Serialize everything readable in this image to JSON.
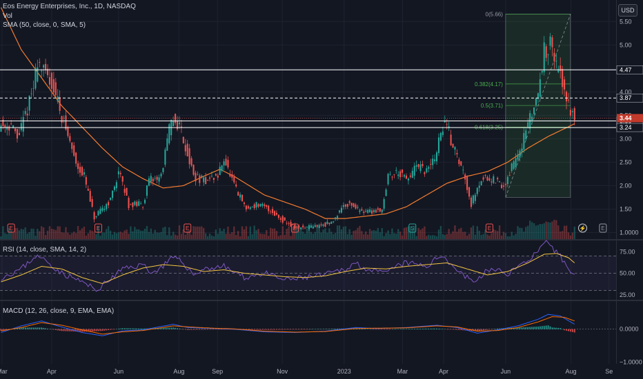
{
  "header": {
    "title": "Eos Energy Enterprises, Inc., 1D, NASDAQ",
    "vol": "Vol",
    "sma": "SMA (50, close, 0, SMA, 5)",
    "currency": "USD"
  },
  "colors": {
    "bg": "#131722",
    "grid": "#1f2330",
    "text": "#b2b5be",
    "up": "#26a69a",
    "down": "#ef5350",
    "sma": "#f57c2f",
    "rsi": "#7e57c2",
    "rsi_ma": "#f4c542",
    "macd": "#2962ff",
    "signal": "#ff6d00",
    "fib": "#4caf50",
    "level": "#ffffff",
    "price_badge": "#c23a2b"
  },
  "chart_data": [
    {
      "type": "candlestick",
      "title": "Eos Energy Enterprises, Inc., 1D, NASDAQ",
      "y_ticks": [
        1.0,
        1.5,
        2.0,
        2.5,
        3.0,
        3.5,
        4.0,
        4.5,
        5.0,
        5.5
      ],
      "y_tick_labels": [
        "1.0000",
        "1.50",
        "2.00",
        "2.50",
        "3.00",
        "3.50",
        "4.00",
        "4.50",
        "5.00",
        "5.50"
      ],
      "ylim": [
        0.86,
        5.96
      ],
      "x_ticks": [
        "Mar",
        "Apr",
        "Jun",
        "Aug",
        "Sep",
        "Nov",
        "2023",
        "Mar",
        "Apr",
        "Jun",
        "Aug",
        "Se"
      ],
      "x_tick_pos": [
        0.5,
        25.0,
        58.0,
        87.8,
        106.8,
        138.8,
        169.3,
        198.1,
        218.4,
        249.0,
        281.2,
        300.0
      ],
      "bars_total": 304,
      "price_path": [
        [
          0,
          3.3
        ],
        [
          6,
          3.3
        ],
        [
          9,
          3.0
        ],
        [
          13,
          3.5
        ],
        [
          17,
          4.1
        ],
        [
          19,
          4.7
        ],
        [
          22,
          4.4
        ],
        [
          26,
          4.2
        ],
        [
          29,
          3.8
        ],
        [
          33,
          3.2
        ],
        [
          38,
          2.5
        ],
        [
          42,
          2.2
        ],
        [
          47,
          1.3
        ],
        [
          49,
          1.4
        ],
        [
          55,
          1.7
        ],
        [
          59,
          2.3
        ],
        [
          64,
          1.6
        ],
        [
          71,
          1.6
        ],
        [
          74,
          2.1
        ],
        [
          80,
          2.2
        ],
        [
          84,
          3.2
        ],
        [
          86,
          3.4
        ],
        [
          89,
          3.3
        ],
        [
          91,
          3.0
        ],
        [
          96,
          2.2
        ],
        [
          101,
          2.1
        ],
        [
          108,
          2.2
        ],
        [
          111,
          2.6
        ],
        [
          114,
          2.2
        ],
        [
          117,
          1.9
        ],
        [
          122,
          1.5
        ],
        [
          127,
          1.6
        ],
        [
          133,
          1.5
        ],
        [
          139,
          1.3
        ],
        [
          146,
          1.1
        ],
        [
          152,
          1.1
        ],
        [
          158,
          1.15
        ],
        [
          164,
          1.2
        ],
        [
          170,
          1.6
        ],
        [
          174,
          1.6
        ],
        [
          177,
          1.5
        ],
        [
          183,
          1.45
        ],
        [
          189,
          1.5
        ],
        [
          192,
          2.2
        ],
        [
          197,
          2.3
        ],
        [
          201,
          2.1
        ],
        [
          206,
          2.4
        ],
        [
          211,
          2.3
        ],
        [
          215,
          2.6
        ],
        [
          218,
          3.1
        ],
        [
          220,
          3.4
        ],
        [
          223,
          3.0
        ],
        [
          227,
          2.5
        ],
        [
          230,
          2.2
        ],
        [
          233,
          1.6
        ],
        [
          236,
          2.0
        ],
        [
          240,
          2.2
        ],
        [
          245,
          2.1
        ],
        [
          249,
          1.95
        ],
        [
          253,
          2.4
        ],
        [
          258,
          2.9
        ],
        [
          262,
          3.4
        ],
        [
          266,
          4.0
        ],
        [
          268,
          4.5
        ],
        [
          269,
          5.2
        ],
        [
          270,
          4.9
        ],
        [
          272,
          5.0
        ],
        [
          274,
          4.7
        ],
        [
          276,
          4.4
        ],
        [
          278,
          4.2
        ],
        [
          280,
          3.9
        ],
        [
          282,
          3.6
        ],
        [
          283,
          3.5
        ]
      ],
      "volume_note": "daily volume bars",
      "sma_path": [
        [
          0,
          5.8
        ],
        [
          10,
          4.9
        ],
        [
          20,
          4.3
        ],
        [
          30,
          3.7
        ],
        [
          40,
          3.25
        ],
        [
          50,
          2.8
        ],
        [
          60,
          2.4
        ],
        [
          70,
          2.15
        ],
        [
          80,
          1.95
        ],
        [
          90,
          2.0
        ],
        [
          100,
          2.2
        ],
        [
          108,
          2.35
        ],
        [
          115,
          2.2
        ],
        [
          130,
          1.8
        ],
        [
          150,
          1.5
        ],
        [
          160,
          1.3
        ],
        [
          170,
          1.3
        ],
        [
          180,
          1.35
        ],
        [
          190,
          1.4
        ],
        [
          200,
          1.55
        ],
        [
          210,
          1.8
        ],
        [
          220,
          2.05
        ],
        [
          230,
          2.2
        ],
        [
          240,
          2.3
        ],
        [
          250,
          2.5
        ],
        [
          260,
          2.8
        ],
        [
          270,
          3.05
        ],
        [
          283,
          3.32
        ]
      ],
      "levels": [
        {
          "price": 4.47,
          "label": "4.47",
          "style": "solid"
        },
        {
          "price": 3.87,
          "label": "3.87",
          "style": "dashed"
        },
        {
          "price": 3.38,
          "label": "3.38",
          "style": "solid"
        },
        {
          "price": 3.24,
          "label": "3.24",
          "style": "solid"
        }
      ],
      "last_price": {
        "value": 3.44,
        "label": "3.44"
      },
      "fib": {
        "x0": 249,
        "x1": 281,
        "low": 1.75,
        "high": 5.66,
        "labels": [
          {
            "text": "0(5.66)",
            "price": 5.66
          },
          {
            "text": "0.382(4.17)",
            "price": 4.17
          },
          {
            "text": "0.5(3.71)",
            "price": 3.71
          },
          {
            "text": "0.618(3.25)",
            "price": 3.25
          }
        ]
      },
      "event_markers": [
        {
          "x": 5,
          "label": "E",
          "kind": "earnings"
        },
        {
          "x": 48,
          "label": "E",
          "kind": "earnings"
        },
        {
          "x": 92,
          "label": "E",
          "kind": "earnings"
        },
        {
          "x": 145,
          "label": "E",
          "kind": "earnings"
        },
        {
          "x": 203,
          "label": "S",
          "kind": "split"
        },
        {
          "x": 241,
          "label": "E",
          "kind": "earnings"
        },
        {
          "x": 287,
          "label": "⚡",
          "kind": "news"
        },
        {
          "x": 297,
          "label": "E",
          "kind": "earnings"
        }
      ]
    },
    {
      "type": "line",
      "title": "RSI (14, close, SMA, 14, 2)",
      "y_ticks": [
        25.0,
        50.0,
        75.0
      ],
      "y_tick_labels": [
        "25.00",
        "50.00",
        "75.00"
      ],
      "ylim": [
        20,
        88
      ],
      "bands": [
        30,
        50,
        70
      ],
      "rsi_path": [
        [
          0,
          45
        ],
        [
          10,
          55
        ],
        [
          17,
          70
        ],
        [
          22,
          65
        ],
        [
          30,
          50
        ],
        [
          40,
          40
        ],
        [
          47,
          30
        ],
        [
          55,
          45
        ],
        [
          60,
          55
        ],
        [
          70,
          60
        ],
        [
          75,
          50
        ],
        [
          85,
          68
        ],
        [
          90,
          62
        ],
        [
          95,
          48
        ],
        [
          100,
          55
        ],
        [
          110,
          58
        ],
        [
          120,
          45
        ],
        [
          130,
          50
        ],
        [
          140,
          42
        ],
        [
          150,
          45
        ],
        [
          160,
          48
        ],
        [
          170,
          55
        ],
        [
          175,
          62
        ],
        [
          183,
          52
        ],
        [
          190,
          50
        ],
        [
          195,
          58
        ],
        [
          200,
          62
        ],
        [
          210,
          58
        ],
        [
          218,
          72
        ],
        [
          222,
          60
        ],
        [
          230,
          45
        ],
        [
          235,
          40
        ],
        [
          240,
          55
        ],
        [
          250,
          50
        ],
        [
          258,
          62
        ],
        [
          265,
          75
        ],
        [
          269,
          85
        ],
        [
          272,
          78
        ],
        [
          276,
          70
        ],
        [
          280,
          55
        ],
        [
          283,
          48
        ]
      ],
      "rsi_ma_path": [
        [
          0,
          40
        ],
        [
          10,
          48
        ],
        [
          20,
          58
        ],
        [
          30,
          55
        ],
        [
          40,
          45
        ],
        [
          50,
          38
        ],
        [
          60,
          48
        ],
        [
          70,
          56
        ],
        [
          80,
          60
        ],
        [
          90,
          58
        ],
        [
          100,
          52
        ],
        [
          110,
          54
        ],
        [
          120,
          50
        ],
        [
          130,
          48
        ],
        [
          140,
          46
        ],
        [
          150,
          45
        ],
        [
          160,
          47
        ],
        [
          170,
          52
        ],
        [
          180,
          56
        ],
        [
          190,
          55
        ],
        [
          200,
          58
        ],
        [
          210,
          60
        ],
        [
          220,
          62
        ],
        [
          230,
          55
        ],
        [
          240,
          48
        ],
        [
          250,
          52
        ],
        [
          260,
          62
        ],
        [
          268,
          72
        ],
        [
          274,
          73
        ],
        [
          280,
          68
        ],
        [
          283,
          62
        ]
      ]
    },
    {
      "type": "line",
      "title": "MACD (12, 26, close, 9, EMA, EMA)",
      "y_ticks": [
        0.0,
        -1.0
      ],
      "y_tick_labels": [
        "0.0000",
        "−1.0000"
      ],
      "ylim": [
        -1.05,
        0.85
      ],
      "macd_path": [
        [
          0,
          -0.1
        ],
        [
          10,
          0.1
        ],
        [
          20,
          0.25
        ],
        [
          28,
          0.1
        ],
        [
          40,
          -0.1
        ],
        [
          50,
          -0.2
        ],
        [
          60,
          -0.05
        ],
        [
          70,
          -0.02
        ],
        [
          85,
          0.15
        ],
        [
          92,
          0.05
        ],
        [
          105,
          0.02
        ],
        [
          115,
          0.0
        ],
        [
          130,
          -0.08
        ],
        [
          145,
          -0.1
        ],
        [
          160,
          -0.06
        ],
        [
          175,
          0.05
        ],
        [
          185,
          0.02
        ],
        [
          200,
          0.05
        ],
        [
          215,
          0.12
        ],
        [
          225,
          0.05
        ],
        [
          235,
          -0.12
        ],
        [
          245,
          -0.02
        ],
        [
          255,
          0.1
        ],
        [
          265,
          0.3
        ],
        [
          270,
          0.45
        ],
        [
          276,
          0.4
        ],
        [
          283,
          0.15
        ]
      ],
      "signal_path": [
        [
          0,
          -0.05
        ],
        [
          10,
          0.05
        ],
        [
          20,
          0.2
        ],
        [
          30,
          0.12
        ],
        [
          40,
          -0.02
        ],
        [
          50,
          -0.15
        ],
        [
          60,
          -0.08
        ],
        [
          70,
          -0.04
        ],
        [
          85,
          0.1
        ],
        [
          95,
          0.06
        ],
        [
          105,
          0.03
        ],
        [
          115,
          0.01
        ],
        [
          130,
          -0.06
        ],
        [
          145,
          -0.09
        ],
        [
          160,
          -0.07
        ],
        [
          175,
          0.02
        ],
        [
          185,
          0.03
        ],
        [
          200,
          0.04
        ],
        [
          215,
          0.1
        ],
        [
          225,
          0.07
        ],
        [
          235,
          -0.06
        ],
        [
          245,
          -0.04
        ],
        [
          255,
          0.05
        ],
        [
          265,
          0.22
        ],
        [
          272,
          0.38
        ],
        [
          278,
          0.36
        ],
        [
          283,
          0.25
        ]
      ]
    }
  ]
}
